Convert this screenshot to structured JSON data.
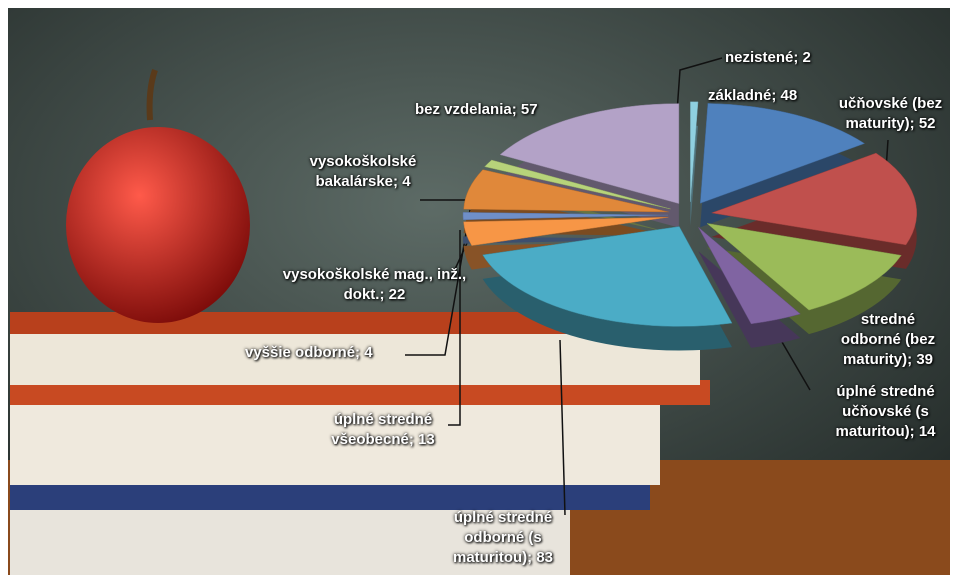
{
  "chart_data": {
    "type": "pie",
    "categories": [
      "nezistené",
      "základné",
      "učňovské (bez maturity)",
      "stredné odborné (bez maturity)",
      "úplné stredné učňovské (s maturitou)",
      "úplné stredné odborné (s maturitou)",
      "úplné stredné všeobecné",
      "vyššie odborné",
      "vysokoškolské mag., inž., dokt.",
      "vysokoškolské bakalárske",
      "bez vzdelania"
    ],
    "values": [
      2,
      48,
      52,
      39,
      14,
      83,
      13,
      4,
      22,
      4,
      57
    ],
    "colors": [
      "#8fd0e0",
      "#4f81bd",
      "#c0504d",
      "#9bbb59",
      "#8064a2",
      "#4bacc6",
      "#f79646",
      "#6f8fc8",
      "#e0883a",
      "#b7d37a",
      "#b3a2c7"
    ],
    "label_separator": "; "
  }
}
